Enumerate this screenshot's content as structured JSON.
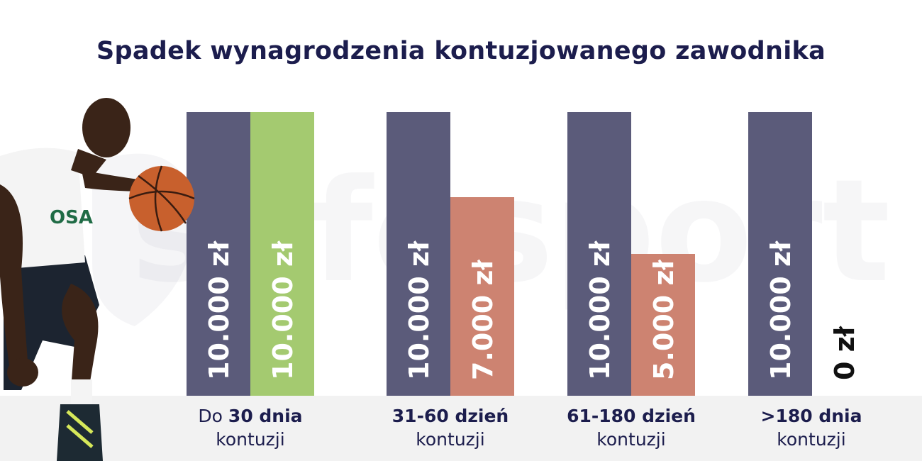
{
  "title": "Spadek wynagrodzenia kontuzjowanego zawodnika",
  "watermark": "safesport",
  "colors": {
    "title": "#1c1d4d",
    "base": "#5b5b7a",
    "green": "#a4ca70",
    "salmon": "#cd8371",
    "ground": "#f2f2f2"
  },
  "chart_data": {
    "type": "bar",
    "title": "Spadek wynagrodzenia kontuzjowanego zawodnika",
    "categories": [
      {
        "prefix": "Do ",
        "bold": "30 dnia",
        "line2": "kontuzji"
      },
      {
        "prefix": "",
        "bold": "31-60 dzień",
        "line2": "kontuzji"
      },
      {
        "prefix": "",
        "bold": "61-180 dzień",
        "line2": "kontuzji"
      },
      {
        "prefix": "",
        "bold": ">180 dnia",
        "line2": "kontuzji"
      }
    ],
    "series": [
      {
        "values": [
          10000,
          10000,
          10000,
          10000
        ],
        "labels": [
          "10.000 zł",
          "10.000 zł",
          "10.000 zł",
          "10.000 zł"
        ]
      },
      {
        "values": [
          10000,
          7000,
          5000,
          0
        ],
        "labels": [
          "10.000 zł",
          "7.000 zł",
          "5.000 zł",
          "0 zł"
        ]
      }
    ],
    "ylim": [
      0,
      10000
    ],
    "legend": "none",
    "grid": false
  }
}
